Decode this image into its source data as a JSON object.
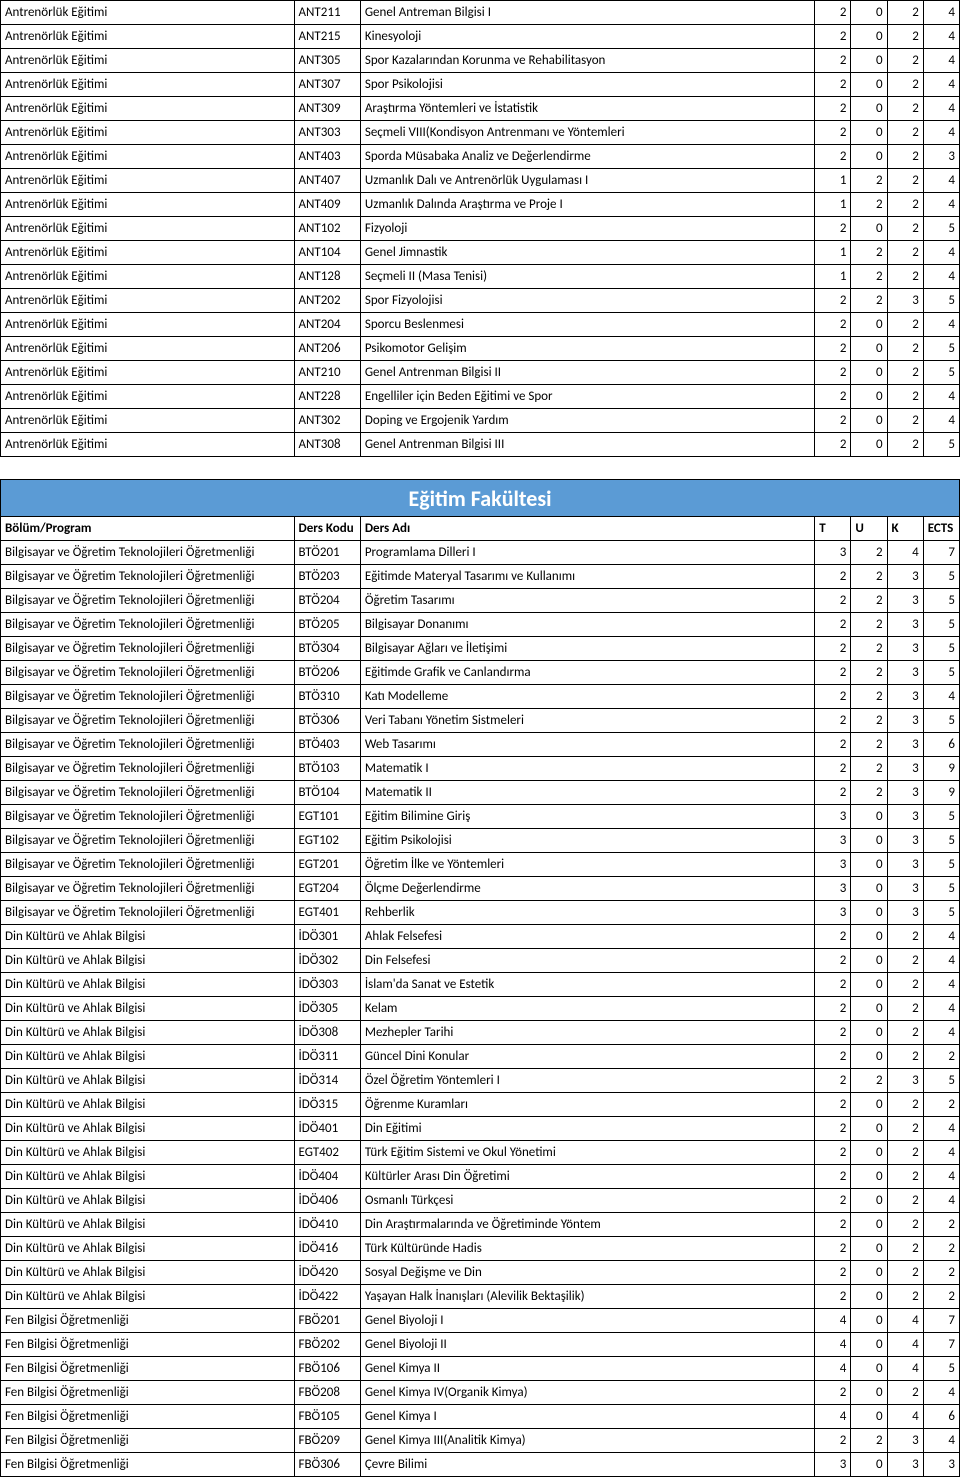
{
  "table1": {
    "rows": [
      [
        "Antrenörlük Eğitimi",
        "ANT211",
        "Genel Antreman Bilgisi I",
        "2",
        "0",
        "2",
        "4"
      ],
      [
        "Antrenörlük Eğitimi",
        "ANT215",
        "Kinesyoloji",
        "2",
        "0",
        "2",
        "4"
      ],
      [
        "Antrenörlük Eğitimi",
        "ANT305",
        "Spor Kazalarından Korunma ve Rehabilitasyon",
        "2",
        "0",
        "2",
        "4"
      ],
      [
        "Antrenörlük Eğitimi",
        "ANT307",
        "Spor Psikolojisi",
        "2",
        "0",
        "2",
        "4"
      ],
      [
        "Antrenörlük Eğitimi",
        "ANT309",
        "Araştırma Yöntemleri ve İstatistik",
        "2",
        "0",
        "2",
        "4"
      ],
      [
        "Antrenörlük Eğitimi",
        "ANT303",
        "Seçmeli VIII(Kondisyon Antrenmanı ve Yöntemleri",
        "2",
        "0",
        "2",
        "4"
      ],
      [
        "Antrenörlük Eğitimi",
        "ANT403",
        "Sporda Müsabaka Analiz ve Değerlendirme",
        "2",
        "0",
        "2",
        "3"
      ],
      [
        "Antrenörlük Eğitimi",
        "ANT407",
        "Uzmanlık Dalı ve Antrenörlük Uygulaması I",
        "1",
        "2",
        "2",
        "4"
      ],
      [
        "Antrenörlük Eğitimi",
        "ANT409",
        "Uzmanlık Dalında Araştırma ve Proje I",
        "1",
        "2",
        "2",
        "4"
      ],
      [
        "Antrenörlük Eğitimi",
        "ANT102",
        "Fizyoloji",
        "2",
        "0",
        "2",
        "5"
      ],
      [
        "Antrenörlük Eğitimi",
        "ANT104",
        "Genel Jimnastik",
        "1",
        "2",
        "2",
        "4"
      ],
      [
        "Antrenörlük Eğitimi",
        "ANT128",
        "Seçmeli II (Masa Tenisi)",
        "1",
        "2",
        "2",
        "4"
      ],
      [
        "Antrenörlük Eğitimi",
        "ANT202",
        "Spor Fizyolojisi",
        "2",
        "2",
        "3",
        "5"
      ],
      [
        "Antrenörlük Eğitimi",
        "ANT204",
        "Sporcu Beslenmesi",
        "2",
        "0",
        "2",
        "4"
      ],
      [
        "Antrenörlük Eğitimi",
        "ANT206",
        "Psikomotor Gelişim",
        "2",
        "0",
        "2",
        "5"
      ],
      [
        "Antrenörlük Eğitimi",
        "ANT210",
        "Genel Antrenman Bilgisi II",
        "2",
        "0",
        "2",
        "5"
      ],
      [
        "Antrenörlük Eğitimi",
        "ANT228",
        "Engelliler için Beden Eğitimi ve Spor",
        "2",
        "0",
        "2",
        "4"
      ],
      [
        "Antrenörlük Eğitimi",
        "ANT302",
        "Doping ve Ergojenik Yardım",
        "2",
        "0",
        "2",
        "4"
      ],
      [
        "Antrenörlük Eğitimi",
        "ANT308",
        "Genel Antrenman Bilgisi III",
        "2",
        "0",
        "2",
        "5"
      ]
    ]
  },
  "table2": {
    "title": "Eğitim Fakültesi",
    "headers": [
      "Bölüm/Program",
      "Ders Kodu",
      "Ders Adı",
      "T",
      "U",
      "K",
      "ECTS"
    ],
    "rows": [
      [
        "Bilgisayar ve Öğretim Teknolojileri Öğretmenliği",
        "BTÖ201",
        "Programlama Dilleri I",
        "3",
        "2",
        "4",
        "7"
      ],
      [
        "Bilgisayar ve Öğretim Teknolojileri Öğretmenliği",
        "BTÖ203",
        "Eğitimde Materyal Tasarımı ve Kullanımı",
        "2",
        "2",
        "3",
        "5"
      ],
      [
        "Bilgisayar ve Öğretim Teknolojileri Öğretmenliği",
        "BTÖ204",
        "Öğretim Tasarımı",
        "2",
        "2",
        "3",
        "5"
      ],
      [
        "Bilgisayar ve Öğretim Teknolojileri Öğretmenliği",
        "BTÖ205",
        "Bilgisayar Donanımı",
        "2",
        "2",
        "3",
        "5"
      ],
      [
        "Bilgisayar ve Öğretim Teknolojileri Öğretmenliği",
        "BTÖ304",
        "Bilgisayar Ağları ve İletişimi",
        "2",
        "2",
        "3",
        "5"
      ],
      [
        "Bilgisayar ve Öğretim Teknolojileri Öğretmenliği",
        "BTÖ206",
        "Eğitimde Grafik ve Canlandırma",
        "2",
        "2",
        "3",
        "5"
      ],
      [
        "Bilgisayar ve Öğretim Teknolojileri Öğretmenliği",
        "BTÖ310",
        "Katı Modelleme",
        "2",
        "2",
        "3",
        "4"
      ],
      [
        "Bilgisayar ve Öğretim Teknolojileri Öğretmenliği",
        "BTÖ306",
        "Veri Tabanı Yönetim Sistmeleri",
        "2",
        "2",
        "3",
        "5"
      ],
      [
        "Bilgisayar ve Öğretim Teknolojileri Öğretmenliği",
        "BTÖ403",
        "Web Tasarımı",
        "2",
        "2",
        "3",
        "6"
      ],
      [
        "Bilgisayar ve Öğretim Teknolojileri Öğretmenliği",
        "BTÖ103",
        "Matematik I",
        "2",
        "2",
        "3",
        "9"
      ],
      [
        "Bilgisayar ve Öğretim Teknolojileri Öğretmenliği",
        "BTÖ104",
        "Matematik II",
        "2",
        "2",
        "3",
        "9"
      ],
      [
        "Bilgisayar ve Öğretim Teknolojileri Öğretmenliği",
        "EGT101",
        "Eğitim Bilimine Giriş",
        "3",
        "0",
        "3",
        "5"
      ],
      [
        "Bilgisayar ve Öğretim Teknolojileri Öğretmenliği",
        "EGT102",
        "Eğitim Psikolojisi",
        "3",
        "0",
        "3",
        "5"
      ],
      [
        "Bilgisayar ve Öğretim Teknolojileri Öğretmenliği",
        "EGT201",
        "Öğretim İlke ve Yöntemleri",
        "3",
        "0",
        "3",
        "5"
      ],
      [
        "Bilgisayar ve Öğretim Teknolojileri Öğretmenliği",
        "EGT204",
        "Ölçme Değerlendirme",
        "3",
        "0",
        "3",
        "5"
      ],
      [
        "Bilgisayar ve Öğretim Teknolojileri Öğretmenliği",
        "EGT401",
        "Rehberlik",
        "3",
        "0",
        "3",
        "5"
      ],
      [
        "Din Kültürü ve Ahlak Bilgisi",
        "İDÖ301",
        "Ahlak Felsefesi",
        "2",
        "0",
        "2",
        "4"
      ],
      [
        "Din Kültürü ve Ahlak Bilgisi",
        "İDÖ302",
        "Din Felsefesi",
        "2",
        "0",
        "2",
        "4"
      ],
      [
        "Din Kültürü ve Ahlak Bilgisi",
        "İDÖ303",
        "İslam'da Sanat ve Estetik",
        "2",
        "0",
        "2",
        "4"
      ],
      [
        "Din Kültürü ve Ahlak Bilgisi",
        "İDÖ305",
        "Kelam",
        "2",
        "0",
        "2",
        "4"
      ],
      [
        "Din Kültürü ve Ahlak Bilgisi",
        "İDÖ308",
        "Mezhepler Tarihi",
        "2",
        "0",
        "2",
        "4"
      ],
      [
        "Din Kültürü ve Ahlak Bilgisi",
        "İDÖ311",
        "Güncel Dini Konular",
        "2",
        "0",
        "2",
        "2"
      ],
      [
        "Din Kültürü ve Ahlak Bilgisi",
        "İDÖ314",
        "Özel Öğretim Yöntemleri I",
        "2",
        "2",
        "3",
        "5"
      ],
      [
        "Din Kültürü ve Ahlak Bilgisi",
        "İDÖ315",
        "Öğrenme Kuramları",
        "2",
        "0",
        "2",
        "2"
      ],
      [
        "Din Kültürü ve Ahlak Bilgisi",
        "İDÖ401",
        "Din Eğitimi",
        "2",
        "0",
        "2",
        "4"
      ],
      [
        "Din Kültürü ve Ahlak Bilgisi",
        "EGT402",
        "Türk Eğitim Sistemi ve Okul Yönetimi",
        "2",
        "0",
        "2",
        "4"
      ],
      [
        "Din Kültürü ve Ahlak Bilgisi",
        "İDÖ404",
        "Kültürler Arası Din Öğretimi",
        "2",
        "0",
        "2",
        "4"
      ],
      [
        "Din Kültürü ve Ahlak Bilgisi",
        "İDÖ406",
        "Osmanlı Türkçesi",
        "2",
        "0",
        "2",
        "4"
      ],
      [
        "Din Kültürü ve Ahlak Bilgisi",
        "İDÖ410",
        "Din Araştırmalarında ve Öğretiminde Yöntem",
        "2",
        "0",
        "2",
        "2"
      ],
      [
        "Din Kültürü ve Ahlak Bilgisi",
        "İDÖ416",
        "Türk Kültüründe Hadis",
        "2",
        "0",
        "2",
        "2"
      ],
      [
        "Din Kültürü ve Ahlak Bilgisi",
        "İDÖ420",
        "Sosyal Değişme ve Din",
        "2",
        "0",
        "2",
        "2"
      ],
      [
        "Din Kültürü ve Ahlak Bilgisi",
        "İDÖ422",
        "Yaşayan Halk İnanışları (Alevilik Bektaşilik)",
        "2",
        "0",
        "2",
        "2"
      ],
      [
        "Fen Bilgisi Öğretmenliği",
        "FBÖ201",
        "Genel Biyoloji I",
        "4",
        "0",
        "4",
        "7"
      ],
      [
        "Fen Bilgisi Öğretmenliği",
        "FBÖ202",
        "Genel Biyoloji II",
        "4",
        "0",
        "4",
        "7"
      ],
      [
        "Fen Bilgisi Öğretmenliği",
        "FBÖ106",
        "Genel Kimya II",
        "4",
        "0",
        "4",
        "5"
      ],
      [
        "Fen Bilgisi Öğretmenliği",
        "FBÖ208",
        "Genel Kimya IV(Organik Kimya)",
        "2",
        "0",
        "2",
        "4"
      ],
      [
        "Fen Bilgisi Öğretmenliği",
        "FBÖ105",
        "Genel Kimya I",
        "4",
        "0",
        "4",
        "6"
      ],
      [
        "Fen Bilgisi Öğretmenliği",
        "FBÖ209",
        "Genel Kimya III(Analitik Kimya)",
        "2",
        "2",
        "3",
        "4"
      ],
      [
        "Fen Bilgisi Öğretmenliği",
        "FBÖ306",
        "Çevre Bilimi",
        "3",
        "0",
        "3",
        "3"
      ]
    ]
  }
}
